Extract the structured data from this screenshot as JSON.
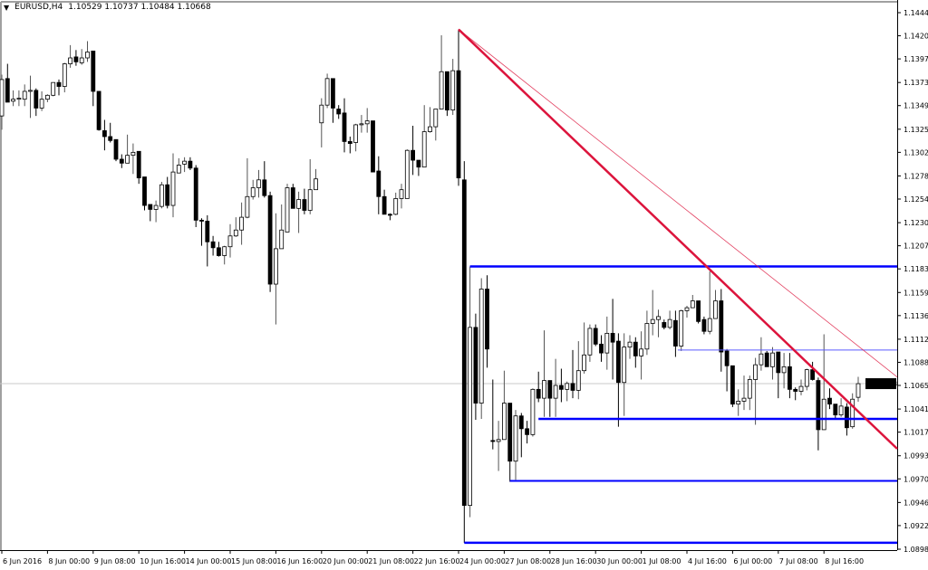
{
  "header": {
    "symbol": "EURUSD,H4",
    "ohlc": "1.10529 1.10737 1.10484 1.10668",
    "menu_icon": "triangle-down-icon"
  },
  "colors": {
    "bull_fill": "#ffffff",
    "bear_fill": "#000000",
    "outline": "#000000",
    "level_blue": "#0000ff",
    "level_blue_thin": "#5a5aff",
    "trend_red": "#dc143c",
    "current_price_line": "#c8c8c8",
    "price_tag_bg": "#000000"
  },
  "chart_data": {
    "type": "candlestick",
    "title": "EURUSD,H4",
    "current_price": 1.10668,
    "current_price_label": "1.10668",
    "ylim": [
      1.08985,
      1.1444
    ],
    "grid": false,
    "y_ticks": [
      "1.14440",
      "1.14205",
      "1.13970",
      "1.13730",
      "1.13495",
      "1.13255",
      "1.13020",
      "1.12780",
      "1.12545",
      "1.12305",
      "1.12070",
      "1.11835",
      "1.11595",
      "1.11360",
      "1.11120",
      "1.10885",
      "1.10650",
      "1.10410",
      "1.10175",
      "1.09935",
      "1.09700",
      "1.09460",
      "1.09225",
      "1.08985"
    ],
    "x_ticks": [
      {
        "bar": 0,
        "label": "6 Jun 2016"
      },
      {
        "bar": 8,
        "label": "8 Jun 00:00"
      },
      {
        "bar": 16,
        "label": "9 Jun 08:00"
      },
      {
        "bar": 24,
        "label": "10 Jun 16:00"
      },
      {
        "bar": 32,
        "label": "14 Jun 00:00"
      },
      {
        "bar": 40,
        "label": "15 Jun 08:00"
      },
      {
        "bar": 48,
        "label": "16 Jun 16:00"
      },
      {
        "bar": 56,
        "label": "20 Jun 00:00"
      },
      {
        "bar": 64,
        "label": "21 Jun 08:00"
      },
      {
        "bar": 72,
        "label": "22 Jun 16:00"
      },
      {
        "bar": 80,
        "label": "24 Jun 00:00"
      },
      {
        "bar": 88,
        "label": "27 Jun 08:00"
      },
      {
        "bar": 96,
        "label": "28 Jun 16:00"
      },
      {
        "bar": 104,
        "label": "30 Jun 00:00"
      },
      {
        "bar": 112,
        "label": "1 Jul 08:00"
      },
      {
        "bar": 120,
        "label": "4 Jul 16:00"
      },
      {
        "bar": 128,
        "label": "6 Jul 00:00"
      },
      {
        "bar": 136,
        "label": "7 Jul 08:00"
      },
      {
        "bar": 144,
        "label": "8 Jul 16:00"
      }
    ],
    "ohlc_fields": [
      "open",
      "high",
      "low",
      "close"
    ],
    "candles": [
      [
        1.1339,
        1.1381,
        1.1325,
        1.1376
      ],
      [
        1.1377,
        1.1392,
        1.1353,
        1.1353
      ],
      [
        1.1354,
        1.1365,
        1.1349,
        1.1356
      ],
      [
        1.1356,
        1.1365,
        1.1349,
        1.1357
      ],
      [
        1.1356,
        1.1371,
        1.1349,
        1.1364
      ],
      [
        1.1364,
        1.138,
        1.1337,
        1.1365
      ],
      [
        1.1365,
        1.1367,
        1.1339,
        1.1347
      ],
      [
        1.1347,
        1.1364,
        1.1344,
        1.1356
      ],
      [
        1.1356,
        1.1361,
        1.1353,
        1.136
      ],
      [
        1.136,
        1.1373,
        1.1359,
        1.1373
      ],
      [
        1.1373,
        1.1376,
        1.136,
        1.1369
      ],
      [
        1.1369,
        1.1393,
        1.1363,
        1.1392
      ],
      [
        1.1392,
        1.1411,
        1.1388,
        1.1398
      ],
      [
        1.1399,
        1.1406,
        1.139,
        1.1394
      ],
      [
        1.1393,
        1.1407,
        1.1391,
        1.1398
      ],
      [
        1.1398,
        1.1415,
        1.1394,
        1.1404
      ],
      [
        1.1405,
        1.1405,
        1.1349,
        1.1364
      ],
      [
        1.1364,
        1.1364,
        1.1324,
        1.1325
      ],
      [
        1.1324,
        1.1335,
        1.1304,
        1.1318
      ],
      [
        1.1318,
        1.1332,
        1.1312,
        1.1314
      ],
      [
        1.1315,
        1.1315,
        1.1293,
        1.1295
      ],
      [
        1.1295,
        1.13,
        1.1286,
        1.1291
      ],
      [
        1.1291,
        1.132,
        1.1291,
        1.1299
      ],
      [
        1.1299,
        1.1311,
        1.128,
        1.1302
      ],
      [
        1.1303,
        1.1303,
        1.127,
        1.1276
      ],
      [
        1.1277,
        1.1277,
        1.1243,
        1.1248
      ],
      [
        1.1249,
        1.1249,
        1.1232,
        1.1244
      ],
      [
        1.1244,
        1.1253,
        1.1231,
        1.1248
      ],
      [
        1.1247,
        1.1272,
        1.1245,
        1.1269
      ],
      [
        1.1269,
        1.1277,
        1.1245,
        1.1248
      ],
      [
        1.1248,
        1.1301,
        1.1236,
        1.1282
      ],
      [
        1.1281,
        1.1296,
        1.1281,
        1.1289
      ],
      [
        1.129,
        1.1297,
        1.1282,
        1.1293
      ],
      [
        1.1293,
        1.1297,
        1.1284,
        1.1286
      ],
      [
        1.1286,
        1.1289,
        1.1226,
        1.1233
      ],
      [
        1.1233,
        1.1235,
        1.1207,
        1.1232
      ],
      [
        1.1232,
        1.1238,
        1.1186,
        1.1211
      ],
      [
        1.1211,
        1.1217,
        1.1197,
        1.1205
      ],
      [
        1.1205,
        1.1211,
        1.1196,
        1.1197
      ],
      [
        1.1197,
        1.1207,
        1.1188,
        1.1206
      ],
      [
        1.1206,
        1.1229,
        1.1195,
        1.1217
      ],
      [
        1.1217,
        1.1236,
        1.1216,
        1.1223
      ],
      [
        1.1223,
        1.1251,
        1.1208,
        1.1236
      ],
      [
        1.1236,
        1.1296,
        1.1235,
        1.1257
      ],
      [
        1.1257,
        1.1274,
        1.1254,
        1.1266
      ],
      [
        1.1266,
        1.1284,
        1.1256,
        1.1274
      ],
      [
        1.1274,
        1.1293,
        1.1256,
        1.1258
      ],
      [
        1.1258,
        1.1262,
        1.116,
        1.1168
      ],
      [
        1.1168,
        1.124,
        1.1127,
        1.1204
      ],
      [
        1.1204,
        1.1249,
        1.1204,
        1.1223
      ],
      [
        1.1221,
        1.127,
        1.1221,
        1.1266
      ],
      [
        1.1266,
        1.127,
        1.1245,
        1.1245
      ],
      [
        1.1245,
        1.1262,
        1.122,
        1.1254
      ],
      [
        1.1254,
        1.1265,
        1.1239,
        1.1243
      ],
      [
        1.1243,
        1.1295,
        1.1239,
        1.1264
      ],
      [
        1.1264,
        1.1285,
        1.1264,
        1.1275
      ],
      [
        1.1332,
        1.1357,
        1.1307,
        1.135
      ],
      [
        1.135,
        1.1382,
        1.1347,
        1.1377
      ],
      [
        1.1377,
        1.1377,
        1.1332,
        1.1347
      ],
      [
        1.1346,
        1.135,
        1.1336,
        1.1341
      ],
      [
        1.1342,
        1.1357,
        1.1302,
        1.1313
      ],
      [
        1.1313,
        1.1318,
        1.1301,
        1.1311
      ],
      [
        1.1312,
        1.1331,
        1.1303,
        1.133
      ],
      [
        1.133,
        1.134,
        1.1322,
        1.1331
      ],
      [
        1.1331,
        1.1347,
        1.1322,
        1.1334
      ],
      [
        1.1334,
        1.1334,
        1.1282,
        1.1282
      ],
      [
        1.1283,
        1.1298,
        1.1239,
        1.1257
      ],
      [
        1.1257,
        1.1264,
        1.1239,
        1.1239
      ],
      [
        1.1239,
        1.124,
        1.1233,
        1.1238
      ],
      [
        1.1239,
        1.1261,
        1.1238,
        1.1255
      ],
      [
        1.1255,
        1.127,
        1.1245,
        1.1264
      ],
      [
        1.1255,
        1.1305,
        1.1255,
        1.1304
      ],
      [
        1.1304,
        1.1329,
        1.1279,
        1.1294
      ],
      [
        1.1294,
        1.1294,
        1.1278,
        1.1287
      ],
      [
        1.1287,
        1.135,
        1.1287,
        1.1323
      ],
      [
        1.1323,
        1.1348,
        1.1322,
        1.1328
      ],
      [
        1.1328,
        1.1346,
        1.1314,
        1.1346
      ],
      [
        1.1346,
        1.1421,
        1.1346,
        1.1384
      ],
      [
        1.1384,
        1.1384,
        1.1339,
        1.1345
      ],
      [
        1.1345,
        1.1397,
        1.134,
        1.1385
      ],
      [
        1.1385,
        1.1427,
        1.1268,
        1.1276
      ],
      [
        1.1274,
        1.1293,
        1.0905,
        1.0943
      ],
      [
        1.0943,
        1.1186,
        1.0931,
        1.1124
      ],
      [
        1.1124,
        1.1138,
        1.103,
        1.1047
      ],
      [
        1.1047,
        1.1174,
        1.1031,
        1.1163
      ],
      [
        1.1163,
        1.1177,
        1.1083,
        1.1102
      ],
      [
        1.1009,
        1.1071,
        1.1,
        1.1008
      ],
      [
        1.1008,
        1.1029,
        1.0978,
        1.101
      ],
      [
        1.101,
        1.108,
        1.101,
        1.1047
      ],
      [
        1.1047,
        1.1047,
        1.0967,
        1.0988
      ],
      [
        1.0988,
        1.104,
        1.0969,
        1.1034
      ],
      [
        1.1034,
        1.1037,
        1.0992,
        1.1021
      ],
      [
        1.1021,
        1.1029,
        1.1006,
        1.1015
      ],
      [
        1.1015,
        1.1062,
        1.1013,
        1.1061
      ],
      [
        1.1061,
        1.1079,
        1.1048,
        1.1052
      ],
      [
        1.1052,
        1.1121,
        1.1033,
        1.107
      ],
      [
        1.107,
        1.107,
        1.1033,
        1.1052
      ],
      [
        1.1052,
        1.1092,
        1.1033,
        1.1065
      ],
      [
        1.1065,
        1.1082,
        1.1048,
        1.1061
      ],
      [
        1.1061,
        1.1069,
        1.1049,
        1.1067
      ],
      [
        1.1067,
        1.1101,
        1.1052,
        1.106
      ],
      [
        1.106,
        1.111,
        1.1051,
        1.108
      ],
      [
        1.108,
        1.1129,
        1.1077,
        1.1096
      ],
      [
        1.1096,
        1.1127,
        1.1089,
        1.1123
      ],
      [
        1.1123,
        1.1127,
        1.1105,
        1.1107
      ],
      [
        1.1107,
        1.1116,
        1.1089,
        1.1098
      ],
      [
        1.1098,
        1.1135,
        1.1081,
        1.1118
      ],
      [
        1.1118,
        1.1153,
        1.1071,
        1.1109
      ],
      [
        1.111,
        1.1118,
        1.1023,
        1.1068
      ],
      [
        1.1068,
        1.1118,
        1.1034,
        1.1104
      ],
      [
        1.1104,
        1.1116,
        1.1092,
        1.1109
      ],
      [
        1.1109,
        1.1114,
        1.1083,
        1.1095
      ],
      [
        1.1095,
        1.112,
        1.1071,
        1.1102
      ],
      [
        1.1102,
        1.1141,
        1.1096,
        1.1128
      ],
      [
        1.1128,
        1.1162,
        1.1116,
        1.1132
      ],
      [
        1.1132,
        1.1142,
        1.1114,
        1.1135
      ],
      [
        1.1129,
        1.1132,
        1.1122,
        1.1124
      ],
      [
        1.1124,
        1.1141,
        1.1122,
        1.1132
      ],
      [
        1.1131,
        1.1141,
        1.1094,
        1.1105
      ],
      [
        1.1105,
        1.1142,
        1.11,
        1.1141
      ],
      [
        1.1141,
        1.1146,
        1.1134,
        1.1144
      ],
      [
        1.1144,
        1.1157,
        1.1144,
        1.1151
      ],
      [
        1.1151,
        1.1151,
        1.1128,
        1.113
      ],
      [
        1.1132,
        1.1135,
        1.1117,
        1.112
      ],
      [
        1.112,
        1.1181,
        1.1117,
        1.1133
      ],
      [
        1.1133,
        1.1162,
        1.1133,
        1.1151
      ],
      [
        1.1151,
        1.1163,
        1.1079,
        1.1099
      ],
      [
        1.11,
        1.1102,
        1.1059,
        1.1085
      ],
      [
        1.1085,
        1.1085,
        1.1043,
        1.1046
      ],
      [
        1.1046,
        1.1061,
        1.1034,
        1.1049
      ],
      [
        1.1049,
        1.1075,
        1.104,
        1.1052
      ],
      [
        1.1052,
        1.1075,
        1.104,
        1.1071
      ],
      [
        1.1071,
        1.1093,
        1.1025,
        1.1086
      ],
      [
        1.1086,
        1.1114,
        1.108,
        1.1097
      ],
      [
        1.1098,
        1.11,
        1.1084,
        1.1084
      ],
      [
        1.1084,
        1.1104,
        1.1071,
        1.1098
      ],
      [
        1.1099,
        1.1099,
        1.1052,
        1.1078
      ],
      [
        1.1078,
        1.1098,
        1.1062,
        1.1084
      ],
      [
        1.1084,
        1.1098,
        1.1052,
        1.1061
      ],
      [
        1.1061,
        1.1063,
        1.105,
        1.1059
      ],
      [
        1.1059,
        1.1071,
        1.1055,
        1.1064
      ],
      [
        1.1064,
        1.1082,
        1.106,
        1.1081
      ],
      [
        1.1081,
        1.1089,
        1.107,
        1.1071
      ],
      [
        1.107,
        1.1073,
        1.0999,
        1.102
      ],
      [
        1.102,
        1.1117,
        1.102,
        1.1051
      ],
      [
        1.1052,
        1.1062,
        1.1041,
        1.1046
      ],
      [
        1.1046,
        1.1046,
        1.1031,
        1.1035
      ],
      [
        1.1035,
        1.1052,
        1.1033,
        1.1044
      ],
      [
        1.1043,
        1.1047,
        1.1014,
        1.1022
      ],
      [
        1.1023,
        1.1057,
        1.1021,
        1.1051
      ],
      [
        1.10529,
        1.10737,
        1.10484,
        1.10668
      ]
    ],
    "horizontal_levels": [
      {
        "price": 1.1186,
        "from_bar": 82,
        "style": "thick"
      },
      {
        "price": 1.1101,
        "from_bar": 118.4,
        "style": "thin"
      },
      {
        "price": 1.1031,
        "from_bar": 94,
        "style": "thick"
      },
      {
        "price": 1.0968,
        "from_bar": 89,
        "style": "medium"
      },
      {
        "price": 1.0905,
        "from_bar": 81,
        "style": "thick"
      }
    ],
    "trendlines": [
      {
        "points": [
          [
            80,
            1.1427
          ],
          [
            140,
            1.1094
          ]
        ],
        "style": "thick",
        "extend": "right"
      },
      {
        "points": [
          [
            80,
            1.1427
          ],
          [
            140,
            1.1151
          ]
        ],
        "style": "thin",
        "extend": "right"
      }
    ]
  }
}
